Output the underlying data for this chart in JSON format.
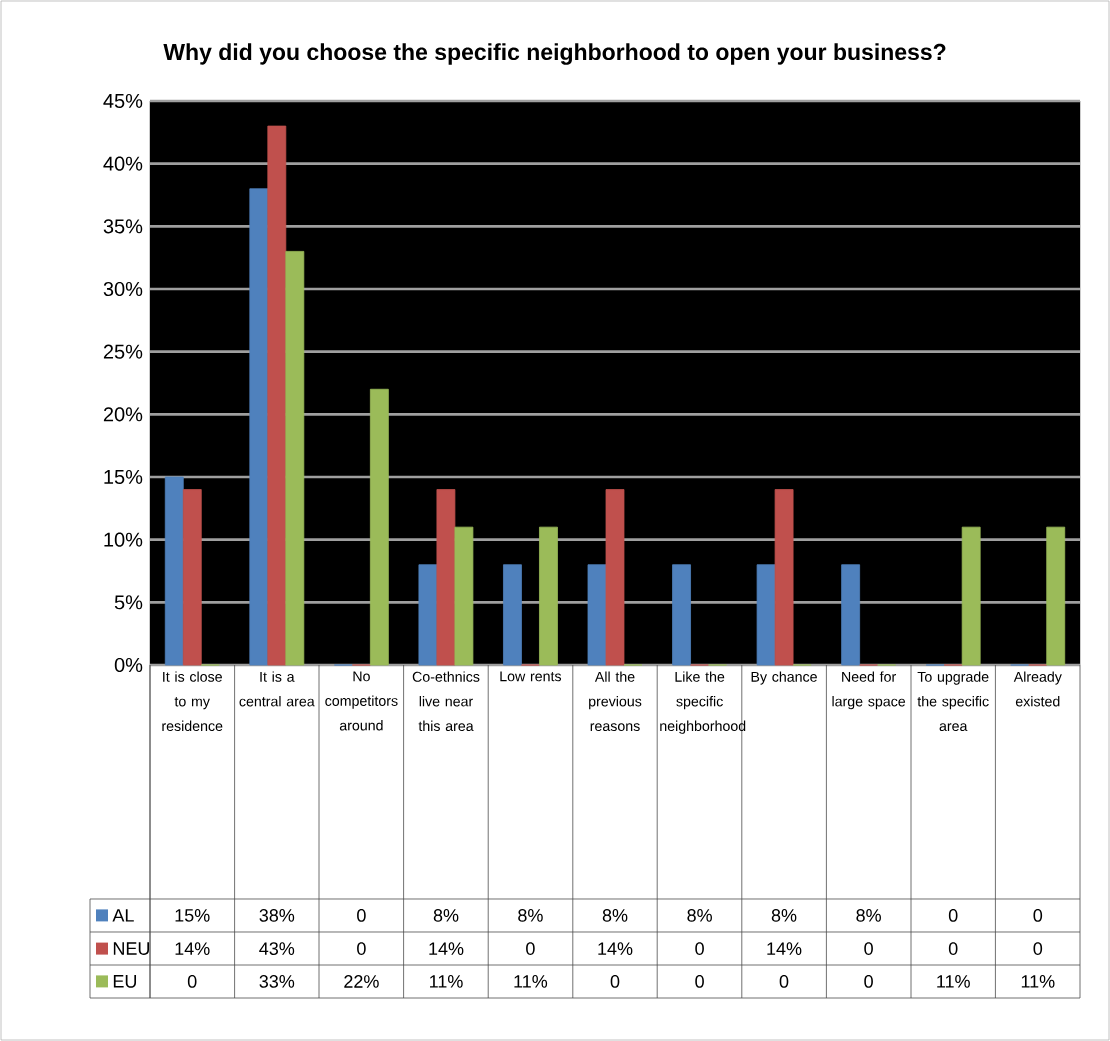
{
  "chart_data": {
    "type": "bar",
    "title": "Why did you choose the specific neighborhood to open your business?",
    "categories": [
      "It is close to my residence",
      "It is a central area",
      "No competitors around",
      "Co-ethnics live near this area",
      "Low rents",
      "All the previous reasons",
      "Like the specific neighborhood",
      "By chance",
      "Need for large space",
      "To upgrade the specific area",
      "Already existed"
    ],
    "series": [
      {
        "name": "AL",
        "color": "#4f81bd",
        "values": [
          15,
          38,
          0,
          8,
          8,
          8,
          8,
          8,
          8,
          0,
          0
        ],
        "value_labels": [
          "15%",
          "38%",
          "0",
          "8%",
          "8%",
          "8%",
          "8%",
          "8%",
          "8%",
          "0",
          "0"
        ]
      },
      {
        "name": "NEU",
        "color": "#c0504d",
        "values": [
          14,
          43,
          0,
          14,
          0,
          14,
          0,
          14,
          0,
          0,
          0
        ],
        "value_labels": [
          "14%",
          "43%",
          "0",
          "14%",
          "0",
          "14%",
          "0",
          "14%",
          "0",
          "0",
          "0"
        ]
      },
      {
        "name": "EU",
        "color": "#9bbb59",
        "values": [
          0,
          33,
          22,
          11,
          11,
          0,
          0,
          0,
          0,
          11,
          11
        ],
        "value_labels": [
          "0",
          "33%",
          "22%",
          "11%",
          "11%",
          "0",
          "0",
          "0",
          "0",
          "11%",
          "11%"
        ]
      }
    ],
    "ylim": [
      0,
      45
    ],
    "yticks": [
      {
        "value": 0,
        "label": "0%"
      },
      {
        "value": 5,
        "label": "5%"
      },
      {
        "value": 10,
        "label": "10%"
      },
      {
        "value": 15,
        "label": "15%"
      },
      {
        "value": 20,
        "label": "20%"
      },
      {
        "value": 25,
        "label": "25%"
      },
      {
        "value": 30,
        "label": "30%"
      },
      {
        "value": 35,
        "label": "35%"
      },
      {
        "value": 40,
        "label": "40%"
      },
      {
        "value": 45,
        "label": "45%"
      }
    ],
    "grid": "y",
    "legend": "bottom"
  }
}
